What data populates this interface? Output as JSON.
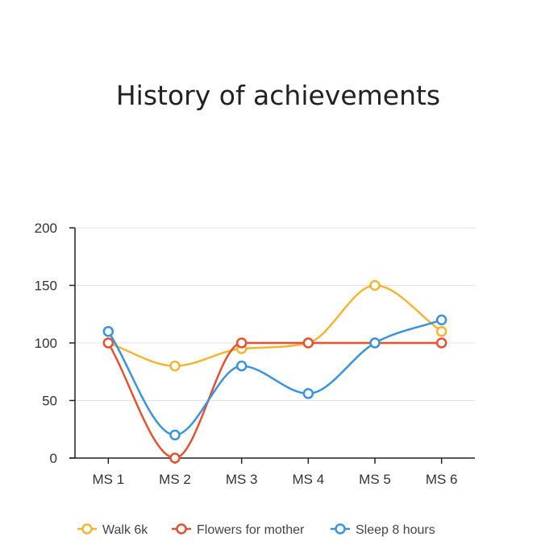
{
  "chart_data": {
    "type": "line",
    "title": "History of achievements",
    "xlabel": "",
    "ylabel": "",
    "categories": [
      "MS 1",
      "MS 2",
      "MS 3",
      "MS 4",
      "MS 5",
      "MS 6"
    ],
    "ylim": [
      0,
      200
    ],
    "yticks": [
      0,
      50,
      100,
      150,
      200
    ],
    "grid": true,
    "legend_position": "bottom",
    "series": [
      {
        "name": "Walk 6k",
        "color": "#F4B530",
        "values": [
          100,
          80,
          95,
          100,
          150,
          110
        ]
      },
      {
        "name": "Flowers for mother",
        "color": "#E8502F",
        "values": [
          100,
          0,
          100,
          100,
          100,
          100
        ]
      },
      {
        "name": "Sleep 8 hours",
        "color": "#3A93E0",
        "values": [
          110,
          20,
          80,
          56,
          100,
          120
        ]
      }
    ]
  }
}
